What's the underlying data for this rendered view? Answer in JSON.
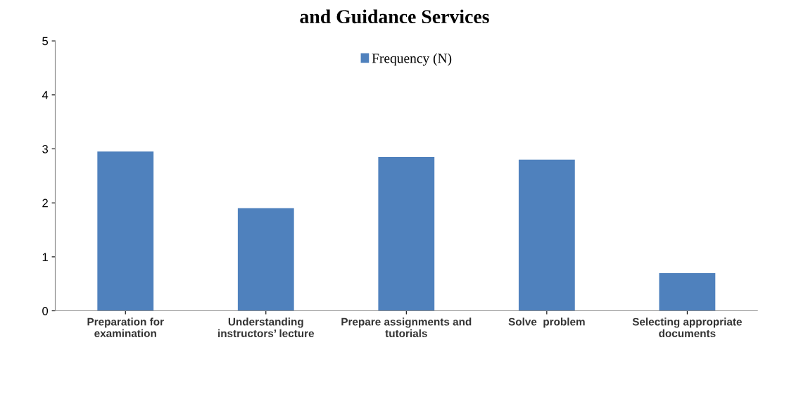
{
  "chart_data": {
    "type": "bar",
    "title": "and Guidance Services",
    "categories": [
      "Preparation for\nexamination",
      "Understanding\ninstructors’ lecture",
      "Prepare assignments and\ntutorials",
      "Solve  problem",
      "Selecting appropriate\ndocuments"
    ],
    "series": [
      {
        "name": "Frequency (N)",
        "color": "#4f81bd",
        "values": [
          2.95,
          1.9,
          2.85,
          2.8,
          0.7
        ]
      }
    ],
    "ylim": [
      0,
      5
    ],
    "yticks": [
      0,
      1,
      2,
      3,
      4,
      5
    ],
    "grid": false,
    "legend": "top"
  }
}
